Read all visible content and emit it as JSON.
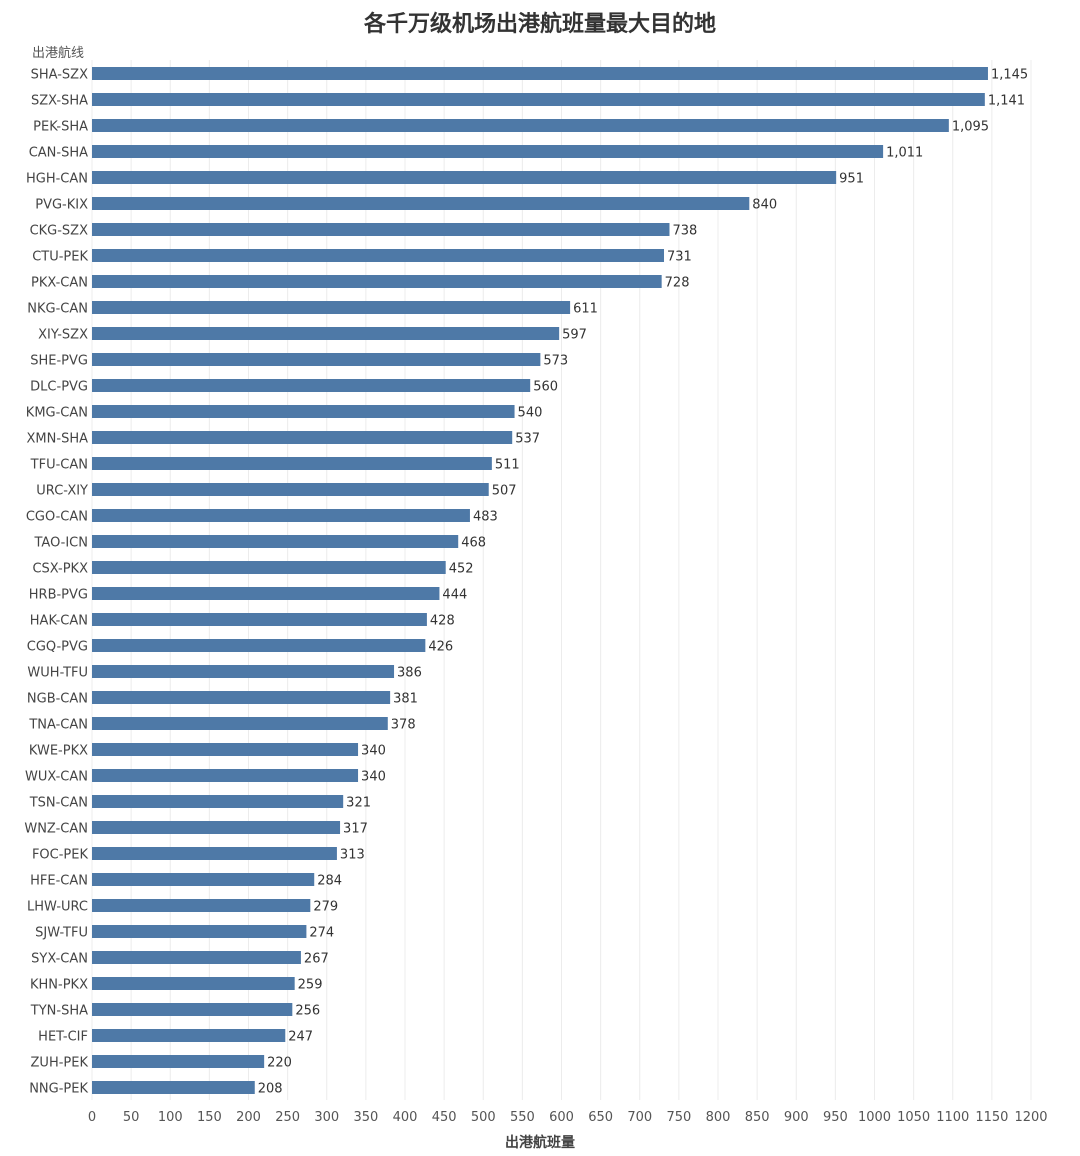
{
  "chart_data": {
    "type": "bar",
    "orientation": "horizontal",
    "title": "各千万级机场出港航班量最大目的地",
    "ylabel": "出港航线",
    "xlabel": "出港航班量",
    "xlim": [
      0,
      1200
    ],
    "xticks": [
      0,
      50,
      100,
      150,
      200,
      250,
      300,
      350,
      400,
      450,
      500,
      550,
      600,
      650,
      700,
      750,
      800,
      850,
      900,
      950,
      1000,
      1050,
      1100,
      1150,
      1200
    ],
    "grid": true,
    "bar_color": "#4e79a7",
    "categories": [
      "SHA-SZX",
      "SZX-SHA",
      "PEK-SHA",
      "CAN-SHA",
      "HGH-CAN",
      "PVG-KIX",
      "CKG-SZX",
      "CTU-PEK",
      "PKX-CAN",
      "NKG-CAN",
      "XIY-SZX",
      "SHE-PVG",
      "DLC-PVG",
      "KMG-CAN",
      "XMN-SHA",
      "TFU-CAN",
      "URC-XIY",
      "CGO-CAN",
      "TAO-ICN",
      "CSX-PKX",
      "HRB-PVG",
      "HAK-CAN",
      "CGQ-PVG",
      "WUH-TFU",
      "NGB-CAN",
      "TNA-CAN",
      "KWE-PKX",
      "WUX-CAN",
      "TSN-CAN",
      "WNZ-CAN",
      "FOC-PEK",
      "HFE-CAN",
      "LHW-URC",
      "SJW-TFU",
      "SYX-CAN",
      "KHN-PKX",
      "TYN-SHA",
      "HET-CIF",
      "ZUH-PEK",
      "NNG-PEK"
    ],
    "values": [
      1145,
      1141,
      1095,
      1011,
      951,
      840,
      738,
      731,
      728,
      611,
      597,
      573,
      560,
      540,
      537,
      511,
      507,
      483,
      468,
      452,
      444,
      428,
      426,
      386,
      381,
      378,
      340,
      340,
      321,
      317,
      313,
      284,
      279,
      274,
      267,
      259,
      256,
      247,
      220,
      208
    ],
    "value_labels": [
      "1,145",
      "1,141",
      "1,095",
      "1,011",
      "951",
      "840",
      "738",
      "731",
      "728",
      "611",
      "597",
      "573",
      "560",
      "540",
      "537",
      "511",
      "507",
      "483",
      "468",
      "452",
      "444",
      "428",
      "426",
      "386",
      "381",
      "378",
      "340",
      "340",
      "321",
      "317",
      "313",
      "284",
      "279",
      "274",
      "267",
      "259",
      "256",
      "247",
      "220",
      "208"
    ]
  }
}
